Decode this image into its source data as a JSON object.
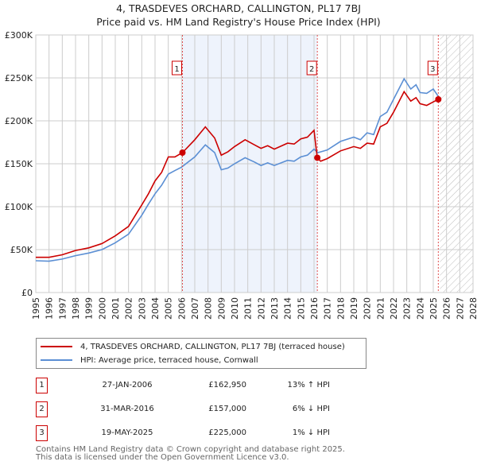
{
  "chart_data": {
    "type": "line",
    "title": "4, TRASDEVES ORCHARD, CALLINGTON, PL17 7BJ",
    "subtitle": "Price paid vs. HM Land Registry's House Price Index (HPI)",
    "xlim": [
      1995,
      2028
    ],
    "ylim": [
      0,
      300000
    ],
    "yticks": [
      0,
      50000,
      100000,
      150000,
      200000,
      250000,
      300000
    ],
    "ytick_labels": [
      "£0",
      "£50K",
      "£100K",
      "£150K",
      "£200K",
      "£250K",
      "£300K"
    ],
    "xticks": [
      "1995",
      "1996",
      "1997",
      "1998",
      "1999",
      "2000",
      "2001",
      "2002",
      "2003",
      "2004",
      "2005",
      "2006",
      "2007",
      "2008",
      "2009",
      "2010",
      "2011",
      "2012",
      "2013",
      "2014",
      "2015",
      "2016",
      "2017",
      "2018",
      "2019",
      "2020",
      "2021",
      "2022",
      "2023",
      "2024",
      "2025",
      "2026",
      "2027",
      "2028"
    ],
    "grid": true,
    "shaded_span": [
      2006.07,
      2016.25
    ],
    "forecast_hatch_from": 2025.5,
    "series": [
      {
        "name": "4, TRASDEVES ORCHARD, CALLINGTON, PL17 7BJ (terraced house)",
        "color": "#cc0000",
        "x": [
          1995,
          1996,
          1997,
          1998,
          1999,
          2000,
          2001,
          2002,
          2003,
          2003.5,
          2004,
          2004.5,
          2005,
          2005.5,
          2006.07,
          2007,
          2007.8,
          2008.5,
          2009,
          2009.5,
          2010,
          2010.8,
          2011.5,
          2012,
          2012.5,
          2013,
          2014,
          2014.5,
          2015,
          2015.5,
          2016,
          2016.24,
          2016.5,
          2017,
          2018,
          2019,
          2019.5,
          2020,
          2020.5,
          2021,
          2021.5,
          2022,
          2022.8,
          2023.3,
          2023.7,
          2024,
          2024.5,
          2025,
          2025.38
        ],
        "y": [
          41000,
          41000,
          44000,
          49000,
          52000,
          57000,
          66000,
          77000,
          102000,
          115000,
          130000,
          140000,
          158000,
          158000,
          162950,
          178000,
          193000,
          180000,
          160000,
          164000,
          170000,
          178000,
          172000,
          168000,
          171000,
          167000,
          174000,
          173000,
          179000,
          181000,
          189000,
          157000,
          153000,
          156000,
          165000,
          170000,
          168000,
          174000,
          173000,
          193000,
          197000,
          210000,
          234000,
          223000,
          227000,
          220000,
          218000,
          222000,
          225000
        ]
      },
      {
        "name": "HPI: Average price, terraced house, Cornwall",
        "color": "#5b8fd4",
        "x": [
          1995,
          1996,
          1997,
          1998,
          1999,
          2000,
          2001,
          2002,
          2003,
          2003.5,
          2004,
          2004.5,
          2005,
          2005.5,
          2006,
          2007,
          2007.8,
          2008.5,
          2009,
          2009.5,
          2010,
          2010.8,
          2011.5,
          2012,
          2012.5,
          2013,
          2014,
          2014.5,
          2015,
          2015.5,
          2016,
          2016.3,
          2017,
          2018,
          2019,
          2019.5,
          2020,
          2020.5,
          2021,
          2021.5,
          2022,
          2022.8,
          2023.3,
          2023.7,
          2024,
          2024.5,
          2025,
          2025.4
        ],
        "y": [
          37000,
          36500,
          39000,
          43000,
          46000,
          50000,
          58000,
          68000,
          90000,
          103000,
          115000,
          125000,
          138000,
          142000,
          146000,
          158000,
          172000,
          163000,
          143000,
          145000,
          150000,
          157000,
          152000,
          148000,
          151000,
          148000,
          154000,
          153000,
          158000,
          160000,
          167000,
          163000,
          166000,
          176000,
          181000,
          178000,
          186000,
          184000,
          205000,
          210000,
          225000,
          249000,
          237000,
          242000,
          233000,
          232000,
          237000,
          228000
        ]
      }
    ],
    "sales": [
      {
        "label": "1",
        "x": 2006.07,
        "y": 162950
      },
      {
        "label": "2",
        "x": 2016.25,
        "y": 157000
      },
      {
        "label": "3",
        "x": 2025.38,
        "y": 225000
      }
    ]
  },
  "legend": {
    "property": "4, TRASDEVES ORCHARD, CALLINGTON, PL17 7BJ (terraced house)",
    "hpi": "HPI: Average price, terraced house, Cornwall"
  },
  "transactions": [
    {
      "num": "1",
      "date": "27-JAN-2006",
      "price": "£162,950",
      "hpi": "13% ↑ HPI"
    },
    {
      "num": "2",
      "date": "31-MAR-2016",
      "price": "£157,000",
      "hpi": "6% ↓ HPI"
    },
    {
      "num": "3",
      "date": "19-MAY-2025",
      "price": "£225,000",
      "hpi": "1% ↓ HPI"
    }
  ],
  "footer": {
    "line1": "Contains HM Land Registry data © Crown copyright and database right 2025.",
    "line2": "This data is licensed under the Open Government Licence v3.0."
  }
}
